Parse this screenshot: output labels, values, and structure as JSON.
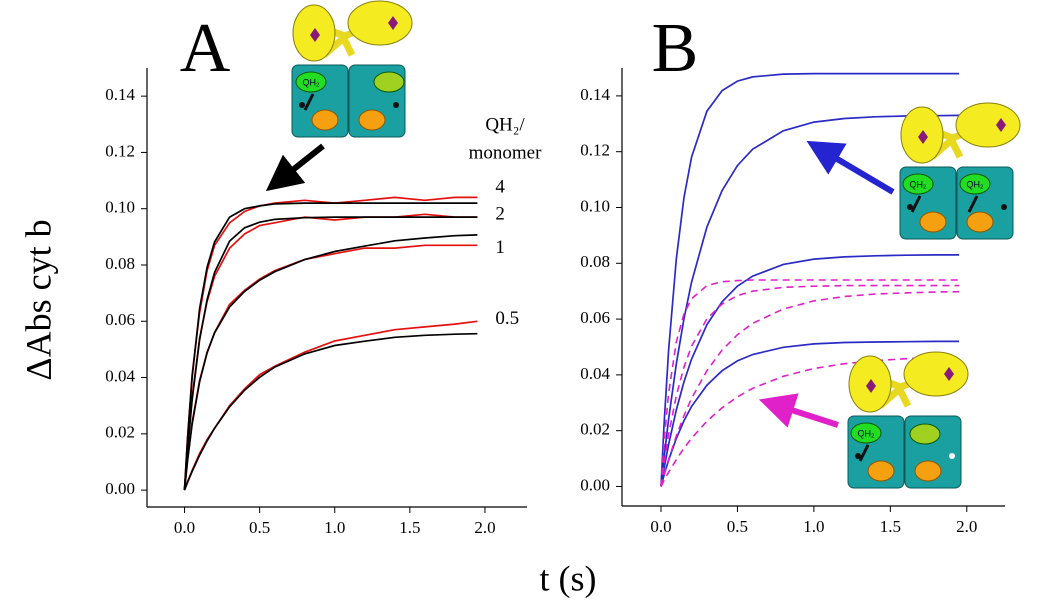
{
  "chart_data": [
    {
      "type": "line",
      "panel_label": "A",
      "x": [
        0,
        0.02,
        0.05,
        0.1,
        0.15,
        0.2,
        0.3,
        0.4,
        0.5,
        0.6,
        0.8,
        1.0,
        1.2,
        1.4,
        1.6,
        1.8,
        1.95
      ],
      "xlim": [
        -0.25,
        2.28
      ],
      "ylim": [
        -0.006,
        0.15
      ],
      "xticks": [
        {
          "value": 0,
          "label": "0.0"
        },
        0.5,
        {
          "value": 1,
          "label": "1.0"
        },
        1.5,
        {
          "value": 2,
          "label": "2.0"
        }
      ],
      "yticks": [
        {
          "value": 0,
          "label": "0.00"
        },
        0.02,
        0.04,
        0.06,
        0.08,
        {
          "value": 0.1,
          "label": "0.10"
        },
        0.12,
        0.14
      ],
      "curve_note": [
        "QH₂/",
        "monomer"
      ],
      "series": [
        {
          "color": "#e41010",
          "style": "solid",
          "values": [
            0,
            0.019,
            0.041,
            0.063,
            0.078,
            0.087,
            0.095,
            0.099,
            0.101,
            0.102,
            0.103,
            0.102,
            0.103,
            0.104,
            0.103,
            0.104,
            0.104
          ]
        },
        {
          "color": "#e41010",
          "style": "solid",
          "values": [
            0,
            0.015,
            0.033,
            0.054,
            0.067,
            0.076,
            0.086,
            0.091,
            0.094,
            0.095,
            0.097,
            0.096,
            0.097,
            0.097,
            0.098,
            0.097,
            0.097
          ]
        },
        {
          "color": "#e41010",
          "style": "solid",
          "values": [
            0,
            0.011,
            0.024,
            0.039,
            0.049,
            0.056,
            0.066,
            0.071,
            0.075,
            0.078,
            0.082,
            0.084,
            0.086,
            0.086,
            0.087,
            0.087,
            0.087
          ]
        },
        {
          "color": "#e41010",
          "style": "solid",
          "values": [
            0,
            0.003,
            0.007,
            0.013,
            0.018,
            0.022,
            0.03,
            0.036,
            0.041,
            0.044,
            0.049,
            0.053,
            0.055,
            0.057,
            0.058,
            0.059,
            0.06
          ]
        },
        {
          "name": "4",
          "color": "#000000",
          "style": "solid",
          "values": [
            0,
            0.0185,
            0.04,
            0.0645,
            0.0792,
            0.0882,
            0.097,
            0.1,
            0.101,
            0.1017,
            0.102,
            0.102,
            0.102,
            0.102,
            0.102,
            0.102,
            0.102
          ]
        },
        {
          "name": "2",
          "color": "#000000",
          "style": "solid",
          "values": [
            0,
            0.0143,
            0.032,
            0.0534,
            0.0677,
            0.0774,
            0.0885,
            0.0932,
            0.0952,
            0.0962,
            0.0968,
            0.097,
            0.097,
            0.097,
            0.097,
            0.097,
            0.097
          ]
        },
        {
          "name": "1",
          "color": "#000000",
          "style": "solid",
          "values": [
            0,
            0.0106,
            0.0234,
            0.0385,
            0.0488,
            0.0559,
            0.0651,
            0.0706,
            0.0746,
            0.0776,
            0.0819,
            0.0848,
            0.0867,
            0.0886,
            0.0896,
            0.0904,
            0.0907
          ]
        },
        {
          "name": "0.5",
          "color": "#000000",
          "style": "solid",
          "values": [
            0,
            0.0028,
            0.0066,
            0.0124,
            0.0175,
            0.022,
            0.0296,
            0.0355,
            0.0401,
            0.0437,
            0.0484,
            0.0514,
            0.0529,
            0.0543,
            0.055,
            0.0554,
            0.0556
          ]
        }
      ]
    },
    {
      "type": "line",
      "panel_label": "B",
      "x": [
        0,
        0.02,
        0.05,
        0.1,
        0.15,
        0.2,
        0.3,
        0.4,
        0.5,
        0.6,
        0.8,
        1.0,
        1.2,
        1.4,
        1.6,
        1.8,
        1.95
      ],
      "xlim": [
        -0.255,
        2.25
      ],
      "ylim": [
        -0.007,
        0.15
      ],
      "xticks": [
        {
          "value": 0,
          "label": "0.0"
        },
        0.5,
        {
          "value": 1,
          "label": "1.0"
        },
        1.5,
        {
          "value": 2,
          "label": "2.0"
        }
      ],
      "yticks": [
        {
          "value": 0,
          "label": "0.00"
        },
        0.02,
        0.04,
        0.06,
        0.08,
        {
          "value": 0.1,
          "label": "0.10"
        },
        0.12,
        0.14
      ],
      "series": [
        {
          "color": "#2a2ac4",
          "style": "solid",
          "values": [
            0,
            0.0219,
            0.0488,
            0.0815,
            0.1034,
            0.1181,
            0.1345,
            0.1419,
            0.1453,
            0.1468,
            0.1478,
            0.148,
            0.148,
            0.148,
            0.148,
            0.148,
            0.148
          ]
        },
        {
          "color": "#2a2ac4",
          "style": "solid",
          "values": [
            0,
            0.0102,
            0.0241,
            0.0439,
            0.06,
            0.0733,
            0.093,
            0.1061,
            0.115,
            0.1209,
            0.1275,
            0.1306,
            0.1319,
            0.1325,
            0.1328,
            0.1329,
            0.133
          ]
        },
        {
          "color": "#2a2ac4",
          "style": "solid",
          "values": [
            0,
            0.0064,
            0.015,
            0.0274,
            0.0374,
            0.0457,
            0.058,
            0.0662,
            0.0718,
            0.0754,
            0.0796,
            0.0815,
            0.0823,
            0.0827,
            0.0829,
            0.083,
            0.083
          ]
        },
        {
          "color": "#2a2ac4",
          "style": "solid",
          "values": [
            0,
            0.004,
            0.0094,
            0.0172,
            0.0235,
            0.0287,
            0.0363,
            0.0415,
            0.045,
            0.0473,
            0.0499,
            0.0511,
            0.0516,
            0.0518,
            0.0519,
            0.052,
            0.052
          ]
        },
        {
          "color": "#e020c8",
          "style": "dashed",
          "values": [
            0,
            0.0158,
            0.0334,
            0.0517,
            0.0618,
            0.0673,
            0.072,
            0.0734,
            0.0738,
            0.074,
            0.074,
            0.074,
            0.074,
            0.074,
            0.074,
            0.074,
            0.074
          ]
        },
        {
          "color": "#e020c8",
          "style": "dashed",
          "values": [
            0,
            0.0081,
            0.0186,
            0.0325,
            0.0427,
            0.0503,
            0.0601,
            0.0654,
            0.0684,
            0.07,
            0.0714,
            0.0718,
            0.072,
            0.072,
            0.072,
            0.072,
            0.072
          ]
        },
        {
          "color": "#e020c8",
          "style": "dashed",
          "values": [
            0,
            0.0041,
            0.0097,
            0.0181,
            0.0253,
            0.0316,
            0.0415,
            0.0489,
            0.0544,
            0.0585,
            0.0636,
            0.0665,
            0.0681,
            0.069,
            0.0694,
            0.0697,
            0.0698
          ]
        },
        {
          "color": "#e020c8",
          "style": "dashed",
          "values": [
            0,
            0.0021,
            0.0051,
            0.0096,
            0.0137,
            0.0173,
            0.0234,
            0.0282,
            0.0321,
            0.0352,
            0.0395,
            0.0423,
            0.044,
            0.0451,
            0.0458,
            0.0462,
            0.0465
          ]
        }
      ]
    }
  ],
  "figure": {
    "x_label": "t (s)",
    "y_label": "ΔAbs cyt b"
  },
  "insets": [
    {
      "labels": [
        "QH₂"
      ]
    },
    {
      "labels": [
        "QH₂",
        "QH₂"
      ]
    },
    {
      "labels": [
        "QH₂"
      ]
    }
  ]
}
